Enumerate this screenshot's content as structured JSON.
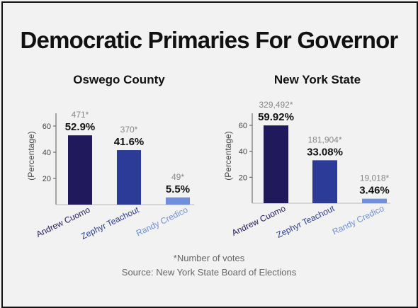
{
  "title": "Democratic Primaries For Governor",
  "footnote": "*Number of votes",
  "source": "Source: New York State Board of Elections",
  "colors": {
    "cuomo": "#201a5c",
    "teachout": "#2b3b97",
    "credico": "#6f8fdc",
    "axis": "#555555",
    "votes_label": "#888888"
  },
  "chart_data": [
    {
      "type": "bar",
      "title": "Oswego County",
      "ylabel": "(Percentage)",
      "yticks": [
        20,
        40,
        60
      ],
      "ylim": [
        0,
        70
      ],
      "categories": [
        "Andrew Cuomo",
        "Zephyr Teachout",
        "Randy Credico"
      ],
      "values": [
        52.9,
        41.6,
        5.5
      ],
      "value_labels": [
        "52.9%",
        "41.6%",
        "5.5%"
      ],
      "votes": [
        "471*",
        "370*",
        "49*"
      ]
    },
    {
      "type": "bar",
      "title": "New York State",
      "ylabel": "(Percentage)",
      "yticks": [
        20,
        40,
        60
      ],
      "ylim": [
        0,
        70
      ],
      "categories": [
        "Andrew Cuomo",
        "Zephyr Teachout",
        "Randy Credico"
      ],
      "values": [
        59.92,
        33.08,
        3.46
      ],
      "value_labels": [
        "59.92%",
        "33.08%",
        "3.46%"
      ],
      "votes": [
        "329,492*",
        "181,904*",
        "19,018*"
      ]
    }
  ]
}
